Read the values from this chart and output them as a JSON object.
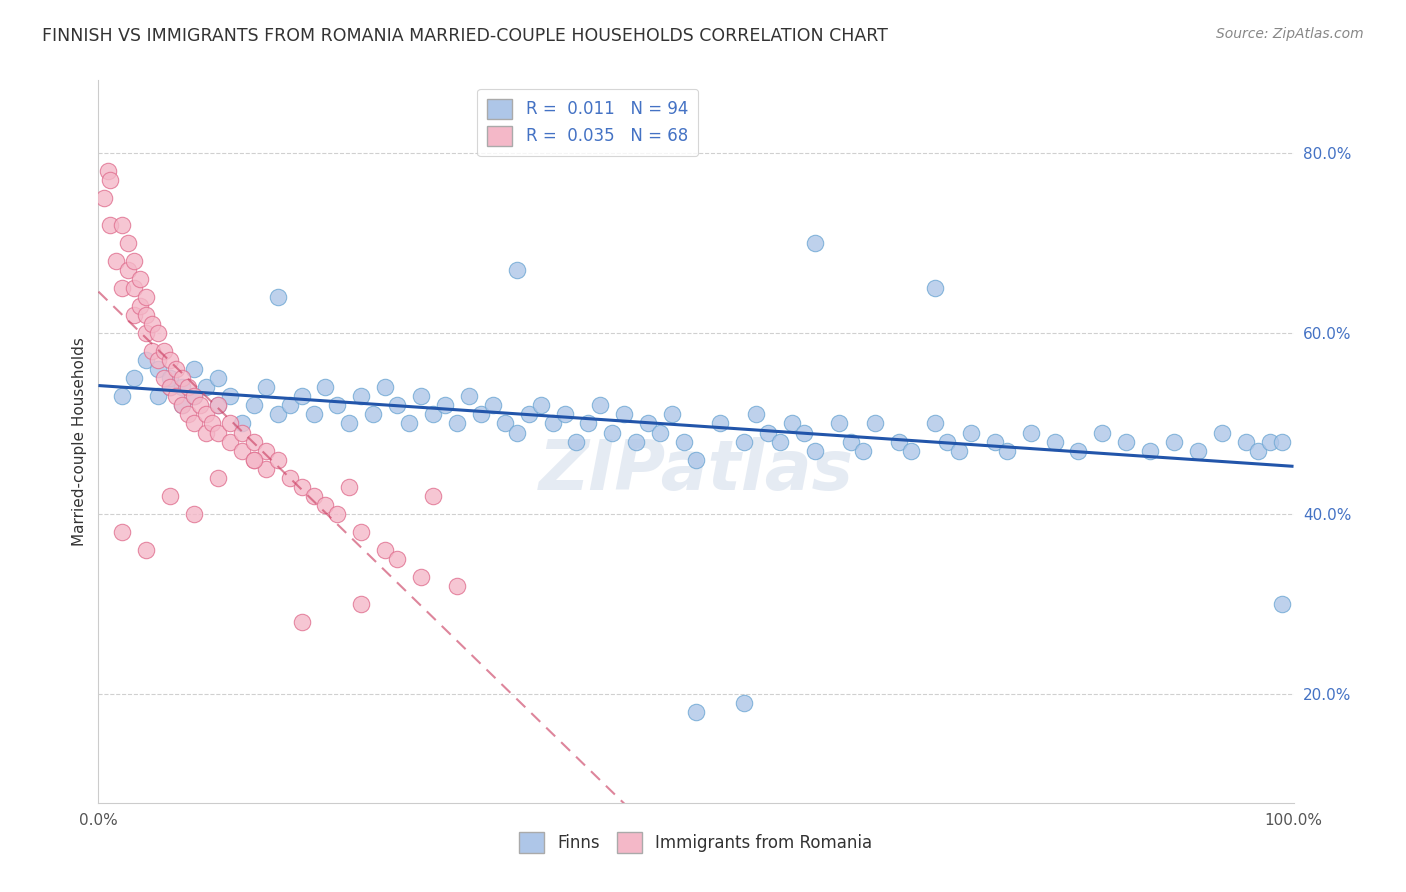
{
  "title": "FINNISH VS IMMIGRANTS FROM ROMANIA MARRIED-COUPLE HOUSEHOLDS CORRELATION CHART",
  "source": "Source: ZipAtlas.com",
  "ylabel": "Married-couple Households",
  "xlim": [
    0,
    1
  ],
  "ylim": [
    0.08,
    0.88
  ],
  "watermark": "ZIPatlas",
  "background_color": "#ffffff",
  "grid_color": "#d0d0d0",
  "finns_color": "#aec6e8",
  "finns_edge_color": "#6fa8d4",
  "romania_color": "#f4b8c8",
  "romania_edge_color": "#e07090",
  "finns_trend_color": "#2255aa",
  "romania_trend_color": "#cc4466",
  "finns_R": 0.011,
  "finns_N": 94,
  "romania_R": 0.035,
  "romania_N": 68,
  "finns_x": [
    0.02,
    0.03,
    0.04,
    0.05,
    0.05,
    0.06,
    0.06,
    0.07,
    0.07,
    0.08,
    0.08,
    0.09,
    0.1,
    0.1,
    0.11,
    0.12,
    0.13,
    0.14,
    0.15,
    0.16,
    0.17,
    0.18,
    0.19,
    0.2,
    0.21,
    0.22,
    0.23,
    0.24,
    0.25,
    0.26,
    0.27,
    0.28,
    0.29,
    0.3,
    0.31,
    0.32,
    0.33,
    0.34,
    0.35,
    0.36,
    0.37,
    0.38,
    0.39,
    0.4,
    0.41,
    0.42,
    0.43,
    0.44,
    0.45,
    0.46,
    0.47,
    0.48,
    0.49,
    0.5,
    0.52,
    0.54,
    0.55,
    0.56,
    0.57,
    0.58,
    0.59,
    0.6,
    0.62,
    0.63,
    0.64,
    0.65,
    0.67,
    0.68,
    0.7,
    0.71,
    0.72,
    0.73,
    0.75,
    0.76,
    0.78,
    0.8,
    0.82,
    0.84,
    0.86,
    0.88,
    0.9,
    0.92,
    0.94,
    0.96,
    0.97,
    0.98,
    0.99,
    0.15,
    0.35,
    0.5,
    0.6,
    0.7,
    0.54,
    0.99
  ],
  "finns_y": [
    0.53,
    0.55,
    0.57,
    0.53,
    0.56,
    0.54,
    0.55,
    0.52,
    0.54,
    0.53,
    0.56,
    0.54,
    0.52,
    0.55,
    0.53,
    0.5,
    0.52,
    0.54,
    0.51,
    0.52,
    0.53,
    0.51,
    0.54,
    0.52,
    0.5,
    0.53,
    0.51,
    0.54,
    0.52,
    0.5,
    0.53,
    0.51,
    0.52,
    0.5,
    0.53,
    0.51,
    0.52,
    0.5,
    0.49,
    0.51,
    0.52,
    0.5,
    0.51,
    0.48,
    0.5,
    0.52,
    0.49,
    0.51,
    0.48,
    0.5,
    0.49,
    0.51,
    0.48,
    0.46,
    0.5,
    0.48,
    0.51,
    0.49,
    0.48,
    0.5,
    0.49,
    0.47,
    0.5,
    0.48,
    0.47,
    0.5,
    0.48,
    0.47,
    0.5,
    0.48,
    0.47,
    0.49,
    0.48,
    0.47,
    0.49,
    0.48,
    0.47,
    0.49,
    0.48,
    0.47,
    0.48,
    0.47,
    0.49,
    0.48,
    0.47,
    0.48,
    0.48,
    0.64,
    0.67,
    0.18,
    0.7,
    0.65,
    0.19,
    0.3
  ],
  "romania_x": [
    0.005,
    0.008,
    0.01,
    0.01,
    0.015,
    0.02,
    0.02,
    0.025,
    0.025,
    0.03,
    0.03,
    0.03,
    0.035,
    0.035,
    0.04,
    0.04,
    0.04,
    0.045,
    0.045,
    0.05,
    0.05,
    0.055,
    0.055,
    0.06,
    0.06,
    0.065,
    0.065,
    0.07,
    0.07,
    0.075,
    0.075,
    0.08,
    0.08,
    0.085,
    0.09,
    0.09,
    0.095,
    0.1,
    0.1,
    0.11,
    0.11,
    0.12,
    0.12,
    0.13,
    0.13,
    0.14,
    0.14,
    0.15,
    0.16,
    0.17,
    0.18,
    0.19,
    0.2,
    0.21,
    0.22,
    0.24,
    0.25,
    0.27,
    0.28,
    0.3,
    0.02,
    0.04,
    0.06,
    0.08,
    0.1,
    0.13,
    0.17,
    0.22
  ],
  "romania_y": [
    0.75,
    0.78,
    0.72,
    0.77,
    0.68,
    0.72,
    0.65,
    0.7,
    0.67,
    0.68,
    0.65,
    0.62,
    0.66,
    0.63,
    0.64,
    0.62,
    0.6,
    0.61,
    0.58,
    0.6,
    0.57,
    0.58,
    0.55,
    0.57,
    0.54,
    0.56,
    0.53,
    0.55,
    0.52,
    0.54,
    0.51,
    0.53,
    0.5,
    0.52,
    0.51,
    0.49,
    0.5,
    0.52,
    0.49,
    0.5,
    0.48,
    0.49,
    0.47,
    0.48,
    0.46,
    0.47,
    0.45,
    0.46,
    0.44,
    0.43,
    0.42,
    0.41,
    0.4,
    0.43,
    0.38,
    0.36,
    0.35,
    0.33,
    0.42,
    0.32,
    0.38,
    0.36,
    0.42,
    0.4,
    0.44,
    0.46,
    0.28,
    0.3
  ]
}
